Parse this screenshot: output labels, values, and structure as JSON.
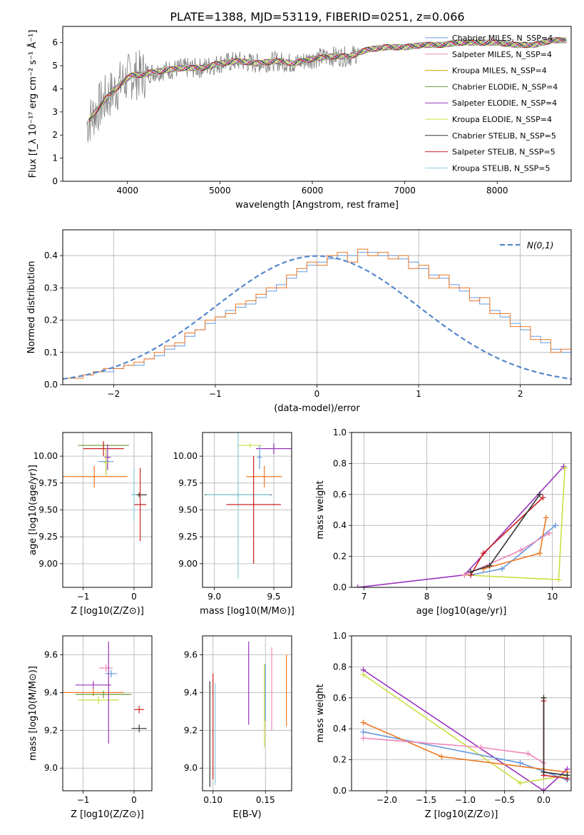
{
  "figure_title": "PLATE=1388, MJD=53119, FIBERID=0251, z=0.066",
  "chart_data": [
    {
      "id": "spectrum",
      "type": "line",
      "xlabel": "wavelength [Angstrom, rest frame]",
      "ylabel": "Flux [f_λ 10⁻¹⁷ erg cm⁻² s⁻¹ Å⁻¹]",
      "xlim": [
        3300,
        8800
      ],
      "ylim": [
        0,
        6.7
      ],
      "xticks": [
        4000,
        5000,
        6000,
        7000,
        8000
      ],
      "yticks": [
        0,
        1,
        2,
        3,
        4,
        5,
        6
      ],
      "data_flux": {
        "name": "data",
        "color": "#808080",
        "x": [
          3550,
          3650,
          3750,
          3850,
          3950,
          4050,
          4150,
          4250,
          4400,
          4600,
          4800,
          5000,
          5200,
          5400,
          5600,
          5800,
          6000,
          6200,
          6400,
          6600,
          6800,
          7000,
          7200,
          7400,
          7600,
          7800,
          8000,
          8200,
          8400,
          8600
        ],
        "y": [
          2.4,
          3.0,
          3.5,
          3.9,
          4.3,
          4.6,
          4.6,
          4.7,
          4.8,
          4.9,
          4.9,
          5.1,
          5.2,
          5.1,
          5.2,
          5.1,
          5.3,
          5.4,
          5.4,
          5.7,
          5.8,
          5.8,
          5.9,
          5.9,
          6.0,
          6.0,
          6.0,
          5.9,
          5.9,
          6.1
        ]
      },
      "legend": [
        {
          "name": "Chabrier MILES, N_SSP=4",
          "color": "#6699dd"
        },
        {
          "name": "Salpeter MILES, N_SSP=4",
          "color": "#ee88bb"
        },
        {
          "name": "Kroupa MILES, N_SSP=4",
          "color": "#dd9900"
        },
        {
          "name": "Chabrier ELODIE, N_SSP=4",
          "color": "#669933"
        },
        {
          "name": "Salpeter ELODIE, N_SSP=4",
          "color": "#9933bb"
        },
        {
          "name": "Kroupa ELODIE, N_SSP=4",
          "color": "#ccdd44"
        },
        {
          "name": "Chabrier STELIB, N_SSP=5",
          "color": "#333333"
        },
        {
          "name": "Salpeter STELIB, N_SSP=5",
          "color": "#cc2222"
        },
        {
          "name": "Kroupa STELIB, N_SSP=5",
          "color": "#88ccdd"
        }
      ]
    },
    {
      "id": "residuals",
      "type": "histogram",
      "xlabel": "(data-model)/error",
      "ylabel": "Normed distribution",
      "xlim": [
        -2.5,
        2.5
      ],
      "ylim": [
        0,
        0.48
      ],
      "xticks": [
        -2,
        -1,
        0,
        1,
        2
      ],
      "yticks": [
        0.0,
        0.1,
        0.2,
        0.3,
        0.4
      ],
      "legend_label": "N(0,1)",
      "bin_edges_start": -2.5,
      "bin_width": 0.1,
      "series": [
        {
          "color": "#6699dd",
          "values": [
            0.02,
            0.02,
            0.03,
            0.04,
            0.04,
            0.05,
            0.06,
            0.06,
            0.08,
            0.09,
            0.11,
            0.12,
            0.15,
            0.17,
            0.19,
            0.21,
            0.23,
            0.24,
            0.25,
            0.27,
            0.29,
            0.31,
            0.33,
            0.35,
            0.37,
            0.38,
            0.39,
            0.4,
            0.4,
            0.41,
            0.41,
            0.4,
            0.4,
            0.39,
            0.38,
            0.36,
            0.34,
            0.33,
            0.31,
            0.29,
            0.27,
            0.25,
            0.23,
            0.21,
            0.19,
            0.17,
            0.15,
            0.13,
            0.11,
            0.1
          ]
        },
        {
          "color": "#ee7722",
          "values": [
            0.02,
            0.02,
            0.03,
            0.04,
            0.05,
            0.05,
            0.06,
            0.07,
            0.08,
            0.1,
            0.12,
            0.13,
            0.16,
            0.17,
            0.2,
            0.21,
            0.22,
            0.25,
            0.26,
            0.28,
            0.3,
            0.3,
            0.34,
            0.36,
            0.38,
            0.37,
            0.4,
            0.41,
            0.38,
            0.42,
            0.4,
            0.41,
            0.39,
            0.4,
            0.36,
            0.37,
            0.33,
            0.34,
            0.3,
            0.3,
            0.26,
            0.27,
            0.22,
            0.22,
            0.18,
            0.18,
            0.14,
            0.14,
            0.1,
            0.11
          ]
        }
      ]
    },
    {
      "id": "age_vs_Z",
      "type": "errorbar",
      "xlabel": "Z [log10(Z/Z⊙)]",
      "ylabel": "age [log10(age/yr)]",
      "xlim": [
        -1.4,
        0.35
      ],
      "ylim": [
        8.78,
        10.22
      ],
      "xticks": [
        -1,
        0
      ],
      "yticks": [
        9.0,
        9.25,
        9.5,
        9.75,
        10.0
      ],
      "points": [
        {
          "color": "#669933",
          "x": -0.6,
          "xerr": 0.5,
          "y": 10.1,
          "yerr": 0.02
        },
        {
          "color": "#cc2222",
          "x": -0.6,
          "xerr": 0.4,
          "y": 10.07,
          "yerr": 0.07
        },
        {
          "color": "#6699dd",
          "x": -0.55,
          "xerr": 0.15,
          "y": 9.95,
          "yerr": 0.12
        },
        {
          "color": "#ee7722",
          "x": -0.78,
          "xerr": 0.65,
          "y": 9.81,
          "yerr": 0.1
        },
        {
          "color": "#9933bb",
          "x": -0.52,
          "xerr": 0.06,
          "y": 9.99,
          "yerr": 0.12
        },
        {
          "color": "#ccdd44",
          "x": -0.55,
          "xerr": 0.05,
          "y": 9.94,
          "yerr": 0.13
        },
        {
          "color": "#333333",
          "x": 0.1,
          "xerr": 0.15,
          "y": 9.64,
          "yerr": 0.02
        },
        {
          "color": "#88ccdd",
          "x": 0.0,
          "xerr": 0.05,
          "y": 9.64,
          "yerr": 0.25
        },
        {
          "color": "#cc2222",
          "x": 0.12,
          "xerr": 0.12,
          "y": 9.55,
          "yerr": 0.34
        }
      ]
    },
    {
      "id": "age_vs_mass",
      "type": "errorbar",
      "xlabel": "mass [log10(M/M⊙)]",
      "ylabel": "",
      "xlim": [
        8.9,
        9.65
      ],
      "ylim": [
        8.78,
        10.22
      ],
      "xticks": [
        9.0,
        9.5
      ],
      "yticks": [
        9.0,
        9.25,
        9.5,
        9.75,
        10.0
      ],
      "points": [
        {
          "color": "#ccdd44",
          "x": 9.3,
          "xerr": 0.1,
          "y": 10.1,
          "yerr": 0.02
        },
        {
          "color": "#9933bb",
          "x": 9.5,
          "xerr": 0.15,
          "y": 10.07,
          "yerr": 0.05
        },
        {
          "color": "#ee7722",
          "x": 9.42,
          "xerr": 0.15,
          "y": 9.81,
          "yerr": 0.1
        },
        {
          "color": "#6699dd",
          "x": 9.38,
          "xerr": 0.02,
          "y": 9.99,
          "yerr": 0.11
        },
        {
          "color": "#333333",
          "x": 9.2,
          "xerr": 0.28,
          "y": 9.64,
          "yerr": 0.02
        },
        {
          "color": "#88ccdd",
          "x": 9.2,
          "xerr": 0.27,
          "y": 9.64,
          "yerr": 0.78
        },
        {
          "color": "#cc2222",
          "x": 9.33,
          "xerr": 0.23,
          "y": 9.55,
          "yerr": 0.02
        },
        {
          "color": "#cc2222",
          "x": 9.33,
          "xerr": 0.0,
          "y": 9.5,
          "yerr": 0.5
        }
      ]
    },
    {
      "id": "massweight_vs_age",
      "type": "line",
      "xlabel": "age [log10(age/yr)]",
      "ylabel": "mass weight",
      "xlim": [
        6.8,
        10.3
      ],
      "ylim": [
        0,
        1.0
      ],
      "xticks": [
        7,
        8,
        9,
        10
      ],
      "yticks": [
        0.0,
        0.2,
        0.4,
        0.6,
        0.8,
        1.0
      ],
      "series": [
        {
          "color": "#9933bb",
          "x": [
            6.9,
            8.6,
            10.18
          ],
          "y": [
            0.0,
            0.08,
            0.78
          ]
        },
        {
          "color": "#ccdd44",
          "x": [
            8.6,
            10.1,
            10.2
          ],
          "y": [
            0.08,
            0.05,
            0.77
          ]
        },
        {
          "color": "#6699dd",
          "x": [
            8.7,
            9.2,
            10.05
          ],
          "y": [
            0.08,
            0.12,
            0.4
          ]
        },
        {
          "color": "#ee7722",
          "x": [
            8.9,
            9.8,
            9.9
          ],
          "y": [
            0.12,
            0.22,
            0.45
          ]
        },
        {
          "color": "#ee88bb",
          "x": [
            8.6,
            9.5,
            9.95
          ],
          "y": [
            0.08,
            0.24,
            0.35
          ]
        },
        {
          "color": "#cc2222",
          "x": [
            8.7,
            8.9,
            9.85
          ],
          "y": [
            0.08,
            0.22,
            0.58
          ]
        },
        {
          "color": "#333333",
          "x": [
            8.7,
            9.0,
            9.8
          ],
          "y": [
            0.1,
            0.14,
            0.6
          ]
        }
      ]
    },
    {
      "id": "mass_vs_Z",
      "type": "errorbar",
      "xlabel": "Z [log10(Z/Z⊙)]",
      "ylabel": "mass [log10(M/M⊙)]",
      "xlim": [
        -1.4,
        0.35
      ],
      "ylim": [
        8.88,
        9.7
      ],
      "xticks": [
        -1,
        0
      ],
      "yticks": [
        9.0,
        9.2,
        9.4,
        9.6
      ],
      "points": [
        {
          "color": "#ee88bb",
          "x": -0.55,
          "xerr": 0.13,
          "y": 9.53,
          "yerr": 0.02
        },
        {
          "color": "#6699dd",
          "x": -0.45,
          "xerr": 0.12,
          "y": 9.5,
          "yerr": 0.02
        },
        {
          "color": "#9933bb",
          "x": -0.8,
          "xerr": 0.35,
          "y": 9.44,
          "yerr": 0.02
        },
        {
          "color": "#ee7722",
          "x": -0.8,
          "xerr": 0.6,
          "y": 9.4,
          "yerr": 0.02
        },
        {
          "color": "#669933",
          "x": -0.6,
          "xerr": 0.55,
          "y": 9.39,
          "yerr": 0.02
        },
        {
          "color": "#ccdd44",
          "x": -0.7,
          "xerr": 0.4,
          "y": 9.36,
          "yerr": 0.02
        },
        {
          "color": "#cc2222",
          "x": 0.1,
          "xerr": 0.1,
          "y": 9.31,
          "yerr": 0.02
        },
        {
          "color": "#333333",
          "x": 0.1,
          "xerr": 0.15,
          "y": 9.21,
          "yerr": 0.02
        },
        {
          "color": "#9933bb",
          "x": -0.5,
          "xerr": 0.0,
          "y": 9.4,
          "yerr": 0.27
        }
      ]
    },
    {
      "id": "mass_vs_EBV",
      "type": "errorbar",
      "xlabel": "E(B-V)",
      "ylabel": "",
      "xlim": [
        0.09,
        0.175
      ],
      "ylim": [
        8.88,
        9.7
      ],
      "xticks": [
        0.1,
        0.15
      ],
      "yticks": [
        9.0,
        9.2,
        9.4,
        9.6
      ],
      "points": [
        {
          "color": "#333333",
          "x": 0.097,
          "y": 9.18,
          "yerr": 0.28
        },
        {
          "color": "#cc2222",
          "x": 0.1,
          "y": 9.22,
          "yerr": 0.28
        },
        {
          "color": "#88ccdd",
          "x": 0.102,
          "y": 9.18,
          "yerr": 0.27
        },
        {
          "color": "#9933bb",
          "x": 0.134,
          "y": 9.45,
          "yerr": 0.22
        },
        {
          "color": "#ccdd44",
          "x": 0.149,
          "y": 9.33,
          "yerr": 0.22
        },
        {
          "color": "#6699dd",
          "x": 0.15,
          "y": 9.4,
          "yerr": 0.15
        },
        {
          "color": "#ee88bb",
          "x": 0.156,
          "y": 9.42,
          "yerr": 0.22
        },
        {
          "color": "#ee7722",
          "x": 0.17,
          "y": 9.41,
          "yerr": 0.19
        }
      ]
    },
    {
      "id": "massweight_vs_Z",
      "type": "line",
      "xlabel": "Z [log10(Z/Z⊙)]",
      "ylabel": "mass weight",
      "xlim": [
        -2.45,
        0.35
      ],
      "ylim": [
        0,
        1.0
      ],
      "xticks": [
        -2.0,
        -1.5,
        -1.0,
        -0.5,
        0.0
      ],
      "yticks": [
        0.0,
        0.2,
        0.4,
        0.6,
        0.8,
        1.0
      ],
      "series": [
        {
          "color": "#9933bb",
          "x": [
            -2.3,
            0.0,
            0.3
          ],
          "y": [
            0.78,
            0.0,
            0.14
          ]
        },
        {
          "color": "#ccdd44",
          "x": [
            -2.3,
            -0.3,
            0.3
          ],
          "y": [
            0.75,
            0.05,
            0.1
          ]
        },
        {
          "color": "#6699dd",
          "x": [
            -2.3,
            -0.3,
            0.3
          ],
          "y": [
            0.38,
            0.18,
            0.07
          ]
        },
        {
          "color": "#ee7722",
          "x": [
            -2.3,
            -1.3,
            0.3
          ],
          "y": [
            0.44,
            0.22,
            0.12
          ]
        },
        {
          "color": "#ee88bb",
          "x": [
            -2.3,
            -0.8,
            -0.2,
            0.0
          ],
          "y": [
            0.34,
            0.28,
            0.24,
            0.18
          ]
        },
        {
          "color": "#cc2222",
          "x": [
            0.0,
            0.0,
            0.3
          ],
          "y": [
            0.58,
            0.1,
            0.08
          ]
        },
        {
          "color": "#333333",
          "x": [
            0.0,
            0.0,
            0.3
          ],
          "y": [
            0.6,
            0.12,
            0.1
          ]
        }
      ]
    }
  ]
}
